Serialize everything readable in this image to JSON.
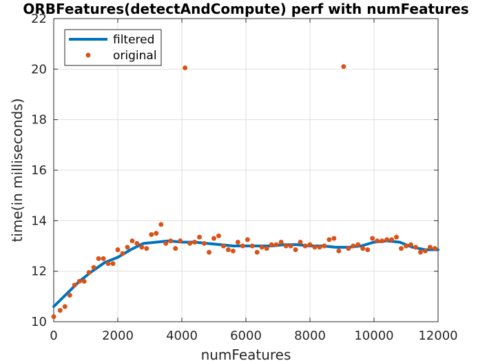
{
  "chart_data": {
    "type": "line",
    "title": "ORBFeatures(detectAndCompute) perf with numFeatures",
    "xlabel": "numFeatures",
    "ylabel": "time(in milliseconds)",
    "xlim": [
      0,
      12000
    ],
    "ylim": [
      10,
      22
    ],
    "xticks": [
      "0",
      "2000",
      "4000",
      "6000",
      "8000",
      "10000",
      "12000"
    ],
    "yticks": [
      "10",
      "12",
      "14",
      "16",
      "18",
      "20",
      "22"
    ],
    "grid": true,
    "legend_position": "top-left",
    "series": [
      {
        "name": "filtered",
        "kind": "line",
        "color": "#0072BD",
        "x": [
          0,
          400,
          800,
          1200,
          1600,
          2000,
          2400,
          2800,
          3200,
          3600,
          4000,
          4400,
          4800,
          5200,
          5600,
          6000,
          6400,
          6800,
          7200,
          7600,
          8000,
          8400,
          8800,
          9200,
          9600,
          10000,
          10400,
          10800,
          11200,
          11600,
          12000
        ],
        "y": [
          10.6,
          11.1,
          11.6,
          12.0,
          12.35,
          12.55,
          12.85,
          13.1,
          13.15,
          13.2,
          13.15,
          13.15,
          13.1,
          13.05,
          13.0,
          13.0,
          13.0,
          13.0,
          13.05,
          13.05,
          13.0,
          13.0,
          12.95,
          12.95,
          13.0,
          13.15,
          13.2,
          13.15,
          12.95,
          12.85,
          12.85
        ]
      },
      {
        "name": "original",
        "kind": "scatter",
        "color": "#D95319",
        "x": [
          0,
          200,
          350,
          500,
          650,
          800,
          950,
          1100,
          1250,
          1400,
          1550,
          1700,
          1850,
          2000,
          2150,
          2300,
          2450,
          2600,
          2750,
          2900,
          3050,
          3200,
          3350,
          3500,
          3650,
          3800,
          3950,
          4100,
          4250,
          4400,
          4550,
          4700,
          4850,
          5000,
          5150,
          5300,
          5450,
          5600,
          5750,
          5900,
          6050,
          6200,
          6350,
          6500,
          6650,
          6800,
          6950,
          7100,
          7250,
          7400,
          7550,
          7700,
          7850,
          8000,
          8150,
          8300,
          8450,
          8600,
          8750,
          8900,
          9050,
          9200,
          9350,
          9500,
          9650,
          9800,
          9950,
          10100,
          10250,
          10400,
          10550,
          10700,
          10850,
          11000,
          11150,
          11300,
          11450,
          11600,
          11750,
          11900
        ],
        "y": [
          10.2,
          10.45,
          10.6,
          11.05,
          11.45,
          11.6,
          11.6,
          11.95,
          12.15,
          12.5,
          12.5,
          12.3,
          12.3,
          12.85,
          12.7,
          12.95,
          13.2,
          13.1,
          12.95,
          12.9,
          13.45,
          13.5,
          13.85,
          13.1,
          13.2,
          12.9,
          13.2,
          20.05,
          13.1,
          13.15,
          13.35,
          13.1,
          12.75,
          13.3,
          13.4,
          13.0,
          12.85,
          12.8,
          13.15,
          13.0,
          13.25,
          13.0,
          12.75,
          12.95,
          12.9,
          13.05,
          13.05,
          13.15,
          13.0,
          13.0,
          12.85,
          13.15,
          13.0,
          13.05,
          12.95,
          12.95,
          13.0,
          13.25,
          13.3,
          12.8,
          20.1,
          12.9,
          13.0,
          13.05,
          12.9,
          12.85,
          13.3,
          13.2,
          13.2,
          13.25,
          13.25,
          13.35,
          12.9,
          13.0,
          13.05,
          12.95,
          12.75,
          12.8,
          12.95,
          12.9
        ]
      }
    ]
  }
}
